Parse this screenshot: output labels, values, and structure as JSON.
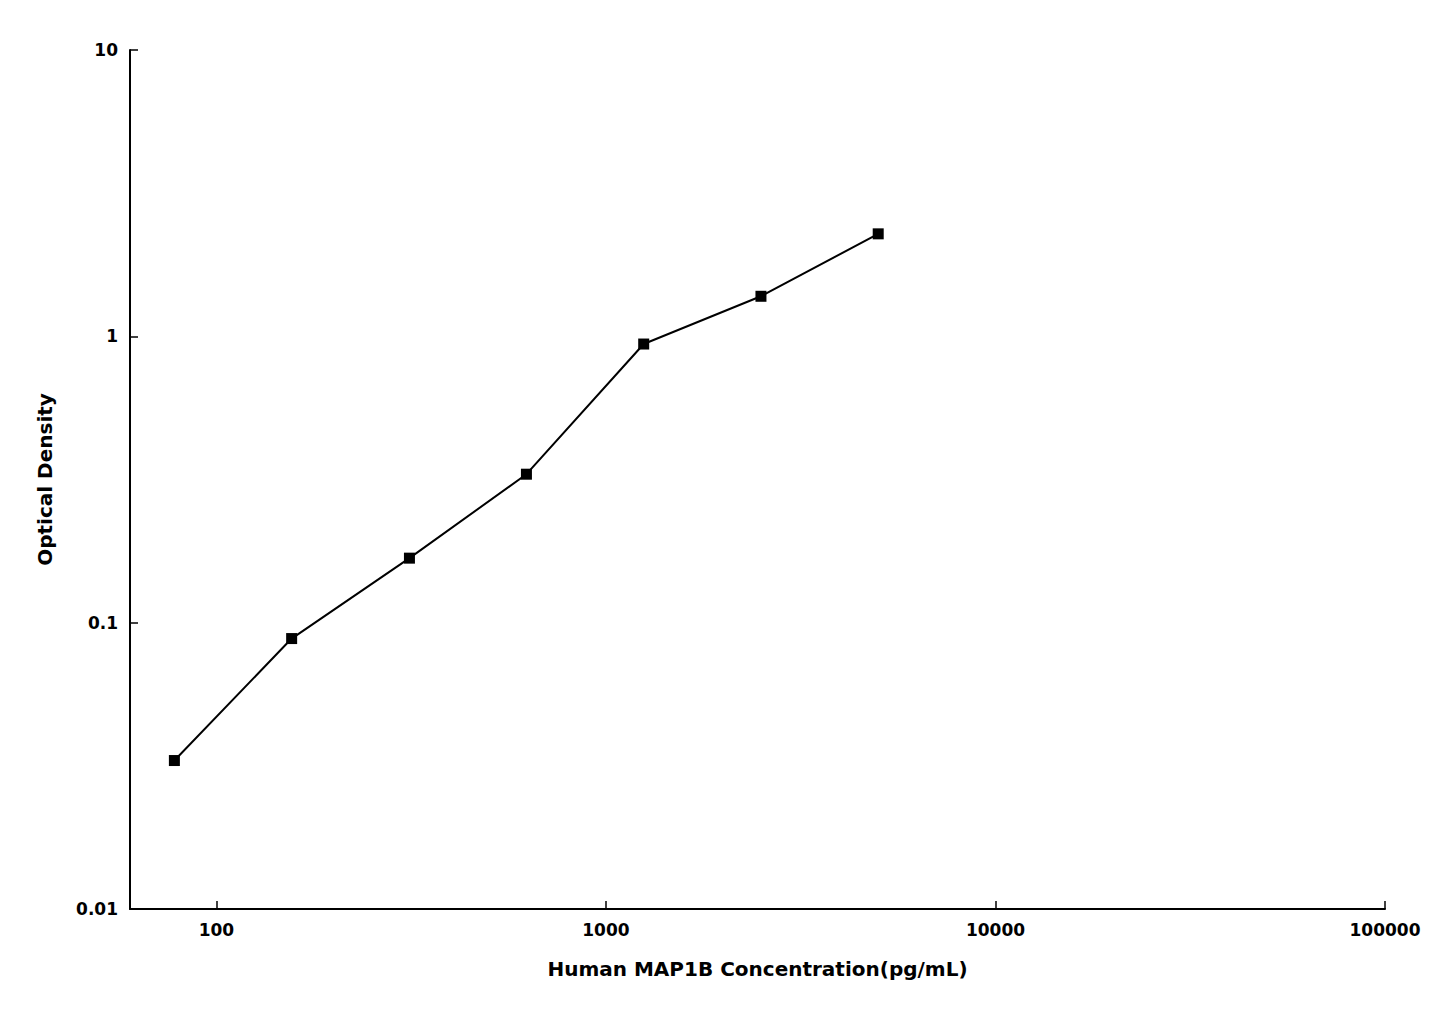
{
  "chart_data": {
    "type": "line",
    "x": [
      78,
      156,
      313,
      625,
      1250,
      2500,
      5000
    ],
    "values": [
      0.033,
      0.088,
      0.168,
      0.33,
      0.94,
      1.38,
      2.28
    ],
    "xlabel": "Human MAP1B Concentration(pg/mL)",
    "ylabel": "Optical Density",
    "xlim": [
      60,
      100000
    ],
    "ylim": [
      0.01,
      10
    ],
    "xticks": [
      100,
      1000,
      10000,
      100000
    ],
    "yticks": [
      0.01,
      0.1,
      1,
      10
    ],
    "log": true,
    "grid": false,
    "color": "#000000",
    "marker": "square"
  }
}
